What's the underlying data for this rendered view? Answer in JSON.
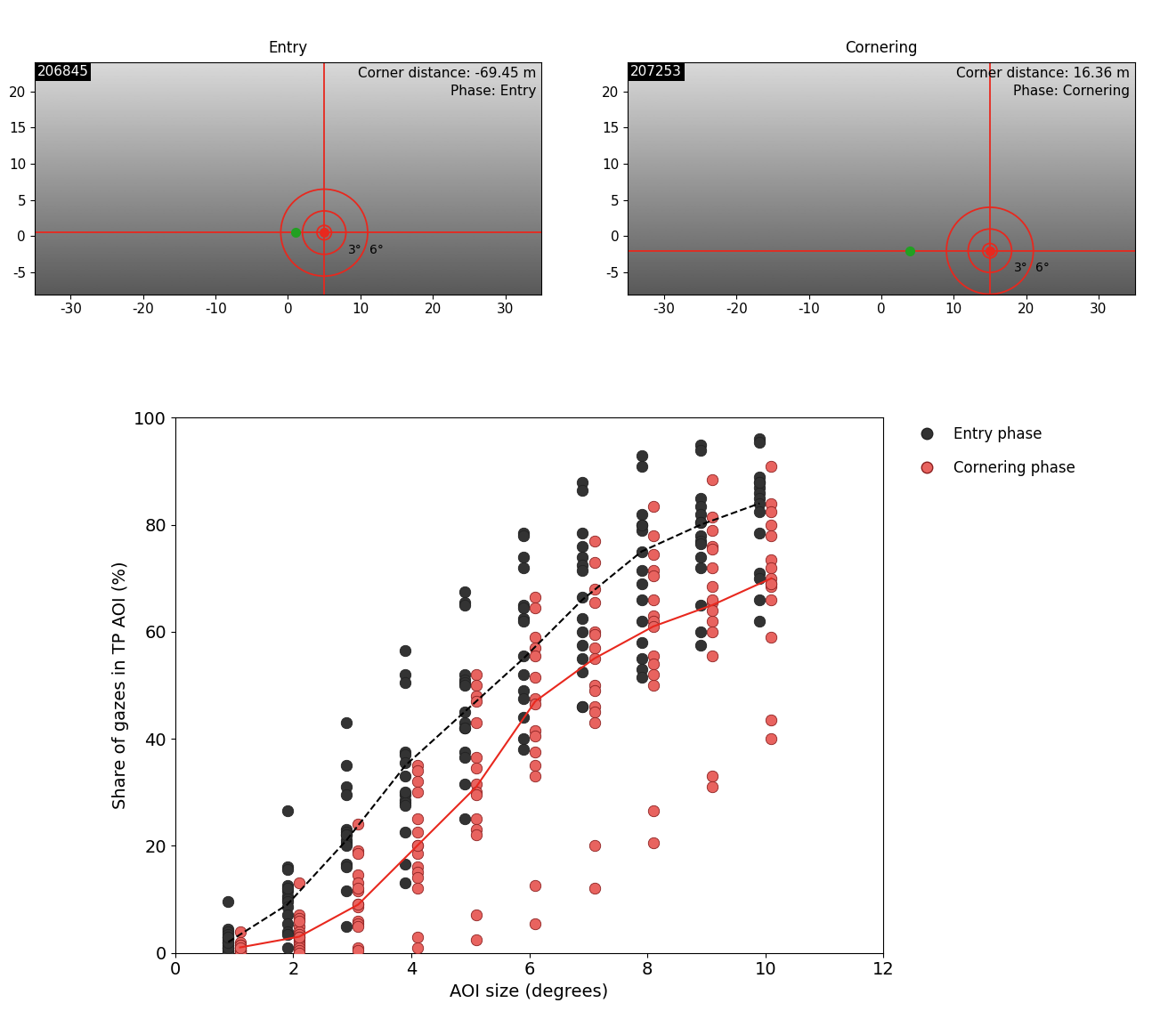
{
  "chart_data": [
    {
      "type": "image_overlay",
      "title": "Entry",
      "frame_label": "206845",
      "annotations": [
        "Corner distance: -69.45 m",
        "Phase: Entry"
      ],
      "xlim": [
        -35,
        35
      ],
      "ylim": [
        -8,
        24
      ],
      "xticks": [
        -30,
        -20,
        -10,
        0,
        10,
        20,
        30
      ],
      "yticks": [
        -5,
        0,
        5,
        10,
        15,
        20
      ],
      "crosshair": {
        "x": 5,
        "y": 0.5,
        "color": "#e8281e"
      },
      "markers": [
        {
          "x": 5,
          "y": 0.5,
          "color": "#e8281e"
        },
        {
          "x": 1,
          "y": 0.5,
          "color": "#22a022"
        }
      ],
      "circle_radii": [
        1,
        3,
        6
      ],
      "circle_labels": [
        null,
        "3°",
        "6°"
      ]
    },
    {
      "type": "image_overlay",
      "title": "Cornering",
      "frame_label": "207253",
      "annotations": [
        "Corner distance: 16.36 m",
        "Phase: Cornering"
      ],
      "xlim": [
        -35,
        35
      ],
      "ylim": [
        -8,
        24
      ],
      "xticks": [
        -30,
        -20,
        -10,
        0,
        10,
        20,
        30
      ],
      "yticks": [
        -5,
        0,
        5,
        10,
        15,
        20
      ],
      "crosshair": {
        "x": 15,
        "y": -2,
        "color": "#e8281e"
      },
      "markers": [
        {
          "x": 15,
          "y": -2,
          "color": "#e8281e"
        },
        {
          "x": 4,
          "y": -2,
          "color": "#22a022"
        }
      ],
      "circle_radii": [
        1,
        3,
        6
      ],
      "circle_labels": [
        null,
        "3°",
        "6°"
      ]
    },
    {
      "type": "scatter",
      "x_label": "AOI size (degrees)",
      "y_label": "Share of gazes in TP AOI (%)",
      "xlim": [
        0,
        12
      ],
      "ylim": [
        0,
        100
      ],
      "xticks": [
        0,
        2,
        4,
        6,
        8,
        10,
        12
      ],
      "yticks": [
        0,
        20,
        40,
        60,
        80,
        100
      ],
      "legend": "upper left",
      "series": [
        {
          "name": "Entry phase",
          "color": "#333333",
          "marker": "o",
          "x": [
            0.9,
            0.9,
            0.9,
            0.9,
            0.9,
            0.9,
            0.9,
            0.9,
            0.9,
            0.9,
            0.9,
            0.9,
            0.9,
            0.9,
            0.9,
            1.9,
            1.9,
            1.9,
            1.9,
            1.9,
            1.9,
            1.9,
            1.9,
            1.9,
            1.9,
            1.9,
            1.9,
            1.9,
            1.9,
            1.9,
            2.9,
            2.9,
            2.9,
            2.9,
            2.9,
            2.9,
            2.9,
            2.9,
            2.9,
            2.9,
            2.9,
            2.9,
            2.9,
            2.9,
            2.9,
            3.9,
            3.9,
            3.9,
            3.9,
            3.9,
            3.9,
            3.9,
            3.9,
            3.9,
            3.9,
            3.9,
            3.9,
            3.9,
            3.9,
            3.9,
            4.9,
            4.9,
            4.9,
            4.9,
            4.9,
            4.9,
            4.9,
            4.9,
            4.9,
            4.9,
            4.9,
            4.9,
            4.9,
            4.9,
            4.9,
            5.9,
            5.9,
            5.9,
            5.9,
            5.9,
            5.9,
            5.9,
            5.9,
            5.9,
            5.9,
            5.9,
            5.9,
            5.9,
            5.9,
            5.9,
            6.9,
            6.9,
            6.9,
            6.9,
            6.9,
            6.9,
            6.9,
            6.9,
            6.9,
            6.9,
            6.9,
            6.9,
            6.9,
            6.9,
            6.9,
            7.9,
            7.9,
            7.9,
            7.9,
            7.9,
            7.9,
            7.9,
            7.9,
            7.9,
            7.9,
            7.9,
            7.9,
            7.9,
            7.9,
            7.9,
            8.9,
            8.9,
            8.9,
            8.9,
            8.9,
            8.9,
            8.9,
            8.9,
            8.9,
            8.9,
            8.9,
            8.9,
            8.9,
            8.9,
            8.9,
            9.9,
            9.9,
            9.9,
            9.9,
            9.9,
            9.9,
            9.9,
            9.9,
            9.9,
            9.9,
            9.9,
            9.9,
            9.9,
            9.9,
            9.9
          ],
          "values": [
            9.5,
            4.5,
            4,
            3.5,
            3,
            2.5,
            2,
            1.5,
            1,
            0.5,
            0,
            0,
            1,
            2,
            3,
            26.5,
            16,
            15.5,
            12.5,
            11.5,
            10.5,
            10,
            9.5,
            8.5,
            7,
            5.5,
            4,
            3.5,
            1,
            12,
            43,
            35,
            31,
            29.5,
            23,
            22.5,
            22,
            21,
            20.5,
            16.5,
            16,
            11.5,
            5,
            20,
            22,
            56.5,
            52,
            50.5,
            37.5,
            37,
            35.5,
            33,
            29.5,
            28.5,
            28,
            27.5,
            22.5,
            16.5,
            13,
            30,
            67.5,
            65.5,
            65,
            52,
            51,
            50.5,
            45,
            43,
            42,
            37.5,
            36.5,
            31.5,
            25,
            42,
            50,
            78.5,
            78,
            74,
            72,
            65,
            64.5,
            62.5,
            55.5,
            52,
            49,
            47.5,
            44,
            40,
            38,
            62,
            88,
            86.5,
            78.5,
            76,
            74,
            72.5,
            71.5,
            66.5,
            62.5,
            60,
            57.5,
            55,
            52.5,
            46,
            46,
            93,
            91,
            82,
            80,
            79,
            75,
            71.5,
            69,
            66,
            62,
            58,
            55,
            53,
            51.5,
            80,
            95,
            94,
            85,
            83.5,
            82,
            80.5,
            78,
            77,
            76.5,
            72,
            65,
            60,
            57.5,
            80.5,
            74,
            96,
            95.5,
            89,
            88,
            87,
            86,
            85,
            84,
            82.5,
            78.5,
            71,
            70,
            66,
            62,
            88
          ]
        },
        {
          "name": "Cornering phase",
          "color": "#e8635f",
          "marker": "o",
          "x": [
            1.1,
            1.1,
            1.1,
            1.1,
            1.1,
            1.1,
            1.1,
            1.1,
            1.1,
            1.1,
            1.1,
            1.1,
            1.1,
            1.1,
            1.1,
            2.1,
            2.1,
            2.1,
            2.1,
            2.1,
            2.1,
            2.1,
            2.1,
            2.1,
            2.1,
            2.1,
            2.1,
            2.1,
            2.1,
            2.1,
            3.1,
            3.1,
            3.1,
            3.1,
            3.1,
            3.1,
            3.1,
            3.1,
            3.1,
            3.1,
            3.1,
            3.1,
            3.1,
            3.1,
            3.1,
            4.1,
            4.1,
            4.1,
            4.1,
            4.1,
            4.1,
            4.1,
            4.1,
            4.1,
            4.1,
            4.1,
            4.1,
            4.1,
            4.1,
            4.1,
            5.1,
            5.1,
            5.1,
            5.1,
            5.1,
            5.1,
            5.1,
            5.1,
            5.1,
            5.1,
            5.1,
            5.1,
            5.1,
            5.1,
            5.1,
            6.1,
            6.1,
            6.1,
            6.1,
            6.1,
            6.1,
            6.1,
            6.1,
            6.1,
            6.1,
            6.1,
            6.1,
            6.1,
            6.1,
            6.1,
            7.1,
            7.1,
            7.1,
            7.1,
            7.1,
            7.1,
            7.1,
            7.1,
            7.1,
            7.1,
            7.1,
            7.1,
            7.1,
            7.1,
            7.1,
            8.1,
            8.1,
            8.1,
            8.1,
            8.1,
            8.1,
            8.1,
            8.1,
            8.1,
            8.1,
            8.1,
            8.1,
            8.1,
            8.1,
            8.1,
            9.1,
            9.1,
            9.1,
            9.1,
            9.1,
            9.1,
            9.1,
            9.1,
            9.1,
            9.1,
            9.1,
            9.1,
            9.1,
            9.1,
            9.1,
            10.1,
            10.1,
            10.1,
            10.1,
            10.1,
            10.1,
            10.1,
            10.1,
            10.1,
            10.1,
            10.1,
            10.1,
            10.1,
            10.1,
            10.1
          ],
          "values": [
            4,
            2,
            1.5,
            1,
            0.5,
            0.5,
            0,
            0,
            1,
            0.5,
            0,
            1.5,
            0.5,
            0,
            1,
            13,
            7,
            6.5,
            5,
            4,
            3.5,
            3,
            2.5,
            2,
            1.5,
            1,
            0.5,
            0,
            3,
            6,
            24,
            19,
            18.5,
            14.5,
            13,
            11.5,
            9,
            8.5,
            6,
            5.5,
            5,
            1,
            0.5,
            12,
            9,
            35,
            34,
            32,
            30,
            25,
            22.5,
            20,
            18.5,
            16,
            15,
            14,
            12,
            3,
            1,
            20,
            52,
            50,
            48,
            47,
            43,
            36.5,
            34.5,
            31.5,
            30,
            29.5,
            25,
            23,
            22,
            7,
            2.5,
            66.5,
            64.5,
            59,
            57,
            55.5,
            51.5,
            47.5,
            46.5,
            41.5,
            40.5,
            37.5,
            35,
            33,
            12.5,
            5.5,
            77,
            73,
            68,
            65.5,
            60,
            59.5,
            57,
            55,
            50,
            49,
            46,
            45,
            43,
            20,
            12,
            83.5,
            78,
            74.5,
            71.5,
            70.5,
            63,
            62,
            61,
            55.5,
            54,
            50,
            26.5,
            20.5,
            52,
            66,
            88.5,
            81.5,
            79,
            76,
            75.5,
            68.5,
            65.5,
            62,
            60,
            55.5,
            33,
            31,
            72,
            64,
            66,
            91,
            84,
            82.5,
            80,
            78,
            73.5,
            72,
            70,
            69,
            68.5,
            66,
            59,
            43.5,
            40,
            69
          ]
        }
      ],
      "lines": [
        {
          "color": "#000000",
          "line_style": "dashed",
          "x": [
            0.9,
            1.9,
            2.9,
            3.9,
            4.9,
            5.9,
            6.9,
            7.9,
            8.9,
            9.9
          ],
          "values": [
            2,
            9,
            21,
            35,
            45,
            55,
            66,
            75,
            80,
            84
          ]
        },
        {
          "color": "#e8281e",
          "line_style": "solid",
          "x": [
            1.1,
            2.1,
            3.1,
            4.1,
            5.1,
            6.1,
            7.1,
            8.1,
            9.1,
            10.1
          ],
          "values": [
            1,
            3,
            9,
            20,
            31,
            47,
            55,
            61,
            65,
            70
          ]
        }
      ]
    }
  ]
}
